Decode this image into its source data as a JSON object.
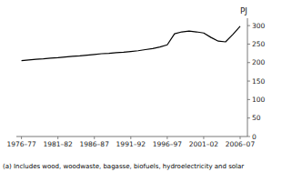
{
  "chart_data": {
    "type": "line",
    "ylabel": "PJ",
    "annotations": [
      "(a) Includes wood, woodwaste, bagasse, biofuels, hydroelectricity and solar"
    ],
    "x": [
      1976.5,
      1977.5,
      1978.5,
      1979.5,
      1980.5,
      1981.5,
      1982.5,
      1983.5,
      1984.5,
      1985.5,
      1986.5,
      1987.5,
      1988.5,
      1989.5,
      1990.5,
      1991.5,
      1992.5,
      1993.5,
      1994.5,
      1995.5,
      1996.5,
      1997.5,
      1998.5,
      1999.5,
      2000.5,
      2001.5,
      2002.5,
      2003.5,
      2004.5,
      2005.5,
      2006.5
    ],
    "values": [
      205,
      207,
      209,
      210,
      212,
      213,
      215,
      217,
      218,
      220,
      222,
      224,
      225,
      227,
      228,
      230,
      232,
      235,
      238,
      242,
      248,
      278,
      283,
      285,
      283,
      280,
      268,
      258,
      256,
      276,
      298
    ],
    "color": "#000000",
    "xlim": [
      1975.8,
      2007.5
    ],
    "xticks": [
      {
        "value": 1976.5,
        "label": "1976–77"
      },
      {
        "value": 1981.5,
        "label": "1981–82"
      },
      {
        "value": 1986.5,
        "label": "1986–87"
      },
      {
        "value": 1991.5,
        "label": "1991–92"
      },
      {
        "value": 1996.5,
        "label": "1996–97"
      },
      {
        "value": 2001.5,
        "label": "2001–02"
      },
      {
        "value": 2006.5,
        "label": "2006–07"
      }
    ],
    "ylim": [
      0,
      320
    ],
    "yticks": [
      0,
      50,
      100,
      150,
      200,
      250,
      300
    ],
    "grid": false
  }
}
